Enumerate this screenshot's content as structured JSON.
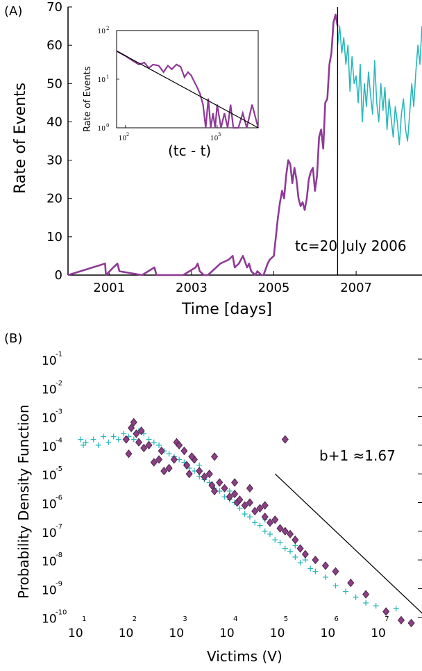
{
  "panel_a_label": "(A)",
  "panel_b_label": "(B)",
  "colors": {
    "purple": "#8e3a96",
    "cyan": "#2ab8bb",
    "diamond_fill": "#8b3f86",
    "diamond_stroke": "#3a1a38",
    "black": "#000000"
  },
  "chart_data": [
    {
      "type": "line",
      "xlabel": "Time [days]",
      "ylabel": "Rate of Events",
      "xlim": [
        2000.0,
        2008.6
      ],
      "ylim": [
        0,
        70
      ],
      "x_ticks": [
        "2001",
        "2003",
        "2005",
        "2007"
      ],
      "x_tick_values": [
        2001,
        2003,
        2005,
        2007
      ],
      "y_ticks": [
        0,
        10,
        20,
        30,
        40,
        50,
        60,
        70
      ],
      "annotation": "tc=20 July 2006",
      "critical_time": 2006.55,
      "series": [
        {
          "color": "#8e3a96",
          "x": [
            2000.0,
            2000.9,
            2000.92,
            2001.1,
            2001.2,
            2001.25,
            2001.8,
            2002.1,
            2002.15,
            2002.4,
            2002.8,
            2003.1,
            2003.15,
            2003.2,
            2003.3,
            2003.4,
            2003.7,
            2003.9,
            2004.0,
            2004.05,
            2004.15,
            2004.25,
            2004.35,
            2004.4,
            2004.45,
            2004.55,
            2004.6,
            2004.7,
            2004.75,
            2004.85,
            2004.9,
            2005.0,
            2005.05,
            2005.1,
            2005.15,
            2005.2,
            2005.25,
            2005.3,
            2005.35,
            2005.4,
            2005.45,
            2005.5,
            2005.55,
            2005.6,
            2005.65,
            2005.7,
            2005.75,
            2005.8,
            2005.85,
            2005.9,
            2005.95,
            2006.0,
            2006.05,
            2006.1,
            2006.15,
            2006.2,
            2006.25,
            2006.3,
            2006.35,
            2006.4,
            2006.45,
            2006.5,
            2006.55
          ],
          "y": [
            0,
            3,
            0,
            2,
            3,
            1,
            0,
            2,
            0,
            0,
            0,
            2,
            3,
            1,
            0,
            0,
            3,
            4,
            5,
            2,
            3,
            5,
            2,
            3,
            1,
            0,
            1,
            0,
            0,
            3,
            4,
            5,
            10,
            15,
            19,
            22,
            20,
            26,
            30,
            29,
            24,
            28,
            25,
            20,
            18,
            19,
            17,
            20,
            25,
            27,
            28,
            22,
            26,
            36,
            38,
            33,
            45,
            46,
            55,
            58,
            66,
            68,
            65
          ]
        },
        {
          "color": "#2ab8bb",
          "x": [
            2006.55,
            2006.6,
            2006.65,
            2006.7,
            2006.75,
            2006.8,
            2006.85,
            2006.9,
            2006.95,
            2007.0,
            2007.05,
            2007.1,
            2007.15,
            2007.2,
            2007.25,
            2007.3,
            2007.35,
            2007.4,
            2007.45,
            2007.5,
            2007.55,
            2007.6,
            2007.65,
            2007.7,
            2007.75,
            2007.8,
            2007.85,
            2007.9,
            2007.95,
            2008.0,
            2008.05,
            2008.1,
            2008.15,
            2008.2,
            2008.25,
            2008.3,
            2008.35,
            2008.4,
            2008.45,
            2008.5,
            2008.55,
            2008.6
          ],
          "y": [
            60,
            65,
            58,
            62,
            55,
            60,
            48,
            57,
            50,
            52,
            45,
            55,
            40,
            50,
            44,
            53,
            47,
            42,
            56,
            45,
            40,
            50,
            43,
            49,
            38,
            46,
            41,
            36,
            44,
            40,
            34,
            42,
            46,
            38,
            35,
            42,
            50,
            44,
            53,
            60,
            55,
            65
          ]
        }
      ],
      "inset": {
        "type": "line",
        "xlabel": "(tc - t)",
        "ylabel": "Rate of Events",
        "xscale": "log",
        "yscale": "log",
        "xlim": [
          80,
          2800
        ],
        "ylim": [
          1,
          100
        ],
        "x_tick_bases": [
          "10",
          "10"
        ],
        "x_tick_exps": [
          "2",
          "3"
        ],
        "x_tick_values": [
          100,
          1000
        ],
        "y_tick_bases": [
          "10",
          "10",
          "10"
        ],
        "y_tick_exps": [
          "2",
          "1",
          "0"
        ],
        "y_tick_values": [
          100,
          10,
          1
        ],
        "series_x": [
          80,
          100,
          120,
          140,
          160,
          180,
          200,
          230,
          260,
          290,
          320,
          360,
          400,
          440,
          480,
          520,
          560,
          600,
          650,
          700,
          750,
          800,
          850,
          900,
          950,
          1000,
          1100,
          1200,
          1300,
          1400,
          1500,
          1700,
          1900,
          2100,
          2400,
          2800
        ],
        "series_y": [
          38,
          30,
          24,
          20,
          22,
          17,
          20,
          19,
          14,
          19,
          16,
          20,
          18,
          11,
          14,
          12,
          9,
          7,
          5,
          3,
          1,
          4,
          1,
          2,
          1,
          3,
          1,
          2,
          1,
          3,
          1,
          1,
          2,
          1,
          3,
          1
        ],
        "fit_x": [
          80,
          2800
        ],
        "fit_y": [
          38,
          1
        ]
      }
    },
    {
      "type": "scatter",
      "xlabel": "Victims (V)",
      "ylabel": "Probability Density Function",
      "xscale": "log",
      "yscale": "log",
      "x_tick_bases": [
        "10",
        "10",
        "10",
        "10",
        "10",
        "10",
        "10"
      ],
      "x_tick_exps": [
        "1",
        "2",
        "3",
        "4",
        "5",
        "6",
        "7"
      ],
      "x_tick_values": [
        1,
        2,
        3,
        4,
        5,
        6,
        7
      ],
      "y_tick_bases": [
        "10",
        "10",
        "10",
        "10",
        "10",
        "10",
        "10",
        "10",
        "10",
        "10"
      ],
      "y_tick_exps": [
        "-1",
        "-2",
        "-3",
        "-4",
        "-5",
        "-6",
        "-7",
        "-8",
        "-9",
        "-10"
      ],
      "y_tick_values": [
        -1,
        -2,
        -3,
        -4,
        -5,
        -6,
        -7,
        -8,
        -9,
        -10
      ],
      "annotation": "b+1 ≈1.67",
      "fit_line": {
        "x": [
          4.8,
          7.8
        ],
        "y": [
          -5.0,
          -10.0
        ]
      },
      "purple_series": {
        "marker": "diamond",
        "points": [
          [
            1.85,
            -3.8
          ],
          [
            1.95,
            -3.4
          ],
          [
            2.0,
            -3.2
          ],
          [
            2.05,
            -3.6
          ],
          [
            2.1,
            -3.9
          ],
          [
            2.2,
            -4.1
          ],
          [
            2.15,
            -3.5
          ],
          [
            1.9,
            -4.3
          ],
          [
            2.3,
            -4.0
          ],
          [
            2.4,
            -4.6
          ],
          [
            2.5,
            -4.5
          ],
          [
            2.6,
            -4.9
          ],
          [
            2.7,
            -4.8
          ],
          [
            2.8,
            -4.5
          ],
          [
            2.85,
            -3.9
          ],
          [
            2.9,
            -4.0
          ],
          [
            3.0,
            -4.2
          ],
          [
            3.05,
            -4.7
          ],
          [
            3.1,
            -5.0
          ],
          [
            3.2,
            -4.5
          ],
          [
            3.3,
            -4.9
          ],
          [
            3.4,
            -5.1
          ],
          [
            3.5,
            -5.0
          ],
          [
            3.55,
            -5.4
          ],
          [
            3.6,
            -5.6
          ],
          [
            3.7,
            -5.3
          ],
          [
            3.8,
            -5.5
          ],
          [
            3.9,
            -5.8
          ],
          [
            4.0,
            -5.7
          ],
          [
            4.05,
            -6.0
          ],
          [
            4.1,
            -5.9
          ],
          [
            4.2,
            -6.1
          ],
          [
            4.3,
            -6.0
          ],
          [
            4.4,
            -6.3
          ],
          [
            4.5,
            -6.2
          ],
          [
            4.6,
            -6.5
          ],
          [
            4.7,
            -6.7
          ],
          [
            4.8,
            -6.6
          ],
          [
            4.9,
            -6.9
          ],
          [
            5.0,
            -7.0
          ],
          [
            5.1,
            -7.1
          ],
          [
            5.2,
            -7.3
          ],
          [
            5.3,
            -7.6
          ],
          [
            5.4,
            -7.8
          ],
          [
            5.6,
            -8.0
          ],
          [
            5.8,
            -8.2
          ],
          [
            6.0,
            -8.4
          ],
          [
            6.3,
            -8.8
          ],
          [
            6.6,
            -9.2
          ],
          [
            7.0,
            -9.8
          ],
          [
            7.3,
            -10.1
          ],
          [
            7.5,
            -10.2
          ],
          [
            3.6,
            -4.4
          ],
          [
            4.0,
            -5.3
          ],
          [
            5.0,
            -3.8
          ],
          [
            4.3,
            -5.5
          ],
          [
            4.6,
            -6.1
          ],
          [
            2.55,
            -4.2
          ],
          [
            3.15,
            -4.4
          ]
        ]
      },
      "cyan_series": {
        "marker": "plus",
        "points": [
          [
            0.95,
            -3.8
          ],
          [
            1.0,
            -4.0
          ],
          [
            1.05,
            -3.9
          ],
          [
            1.2,
            -3.8
          ],
          [
            1.3,
            -4.0
          ],
          [
            1.4,
            -3.7
          ],
          [
            1.5,
            -3.9
          ],
          [
            1.6,
            -3.7
          ],
          [
            1.7,
            -3.8
          ],
          [
            1.8,
            -3.6
          ],
          [
            1.9,
            -3.7
          ],
          [
            2.0,
            -3.8
          ],
          [
            2.1,
            -3.5
          ],
          [
            2.2,
            -3.6
          ],
          [
            2.3,
            -3.8
          ],
          [
            2.4,
            -3.9
          ],
          [
            2.5,
            -4.0
          ],
          [
            2.6,
            -4.2
          ],
          [
            2.7,
            -4.3
          ],
          [
            2.8,
            -4.4
          ],
          [
            2.9,
            -4.5
          ],
          [
            3.0,
            -4.6
          ],
          [
            3.1,
            -4.8
          ],
          [
            3.2,
            -4.9
          ],
          [
            3.3,
            -5.1
          ],
          [
            3.4,
            -5.2
          ],
          [
            3.5,
            -5.3
          ],
          [
            3.6,
            -5.5
          ],
          [
            3.7,
            -5.6
          ],
          [
            3.8,
            -5.8
          ],
          [
            3.9,
            -5.9
          ],
          [
            4.0,
            -6.0
          ],
          [
            4.1,
            -6.2
          ],
          [
            4.2,
            -6.4
          ],
          [
            4.3,
            -6.5
          ],
          [
            4.4,
            -6.7
          ],
          [
            4.5,
            -6.8
          ],
          [
            4.6,
            -7.0
          ],
          [
            4.7,
            -7.1
          ],
          [
            4.8,
            -7.3
          ],
          [
            4.9,
            -7.4
          ],
          [
            5.0,
            -7.6
          ],
          [
            5.1,
            -7.7
          ],
          [
            5.2,
            -7.9
          ],
          [
            5.3,
            -8.1
          ],
          [
            5.4,
            -8.0
          ],
          [
            5.5,
            -8.3
          ],
          [
            5.6,
            -8.4
          ],
          [
            5.8,
            -8.6
          ],
          [
            6.0,
            -8.9
          ],
          [
            6.2,
            -9.1
          ],
          [
            6.4,
            -9.3
          ],
          [
            6.6,
            -9.5
          ],
          [
            6.8,
            -9.6
          ],
          [
            7.0,
            -9.8
          ],
          [
            7.2,
            -9.7
          ],
          [
            3.3,
            -4.7
          ],
          [
            3.9,
            -5.6
          ],
          [
            4.6,
            -6.6
          ],
          [
            5.2,
            -7.5
          ]
        ]
      }
    }
  ]
}
